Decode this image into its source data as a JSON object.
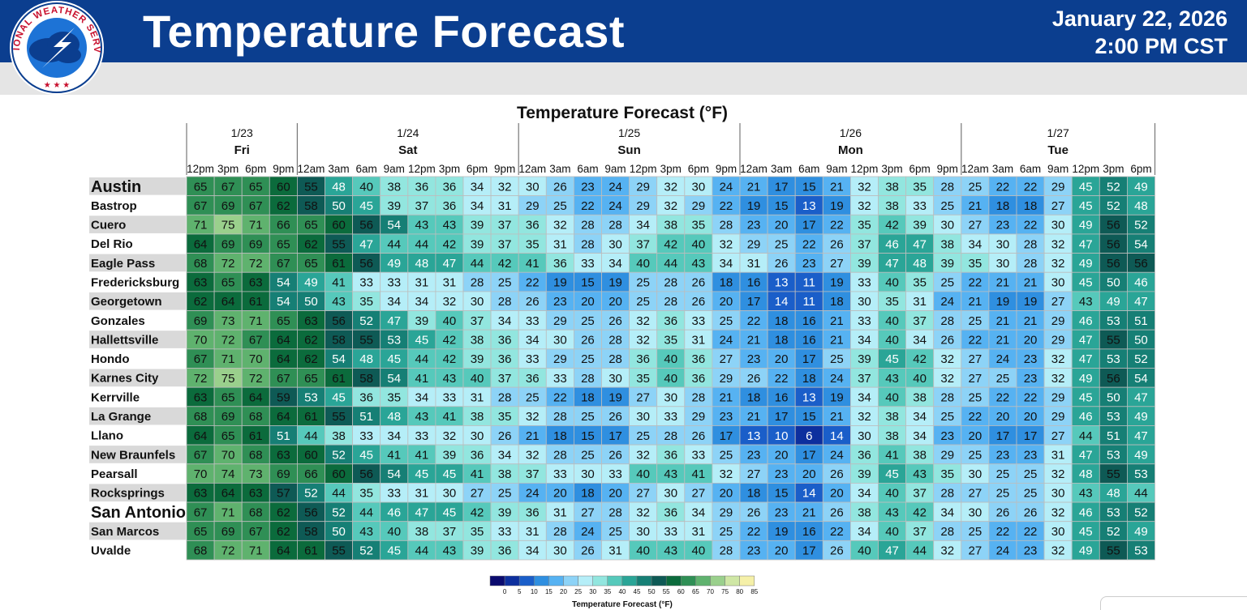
{
  "header": {
    "title": "Temperature Forecast",
    "date": "January 22, 2026",
    "time": "2:00 PM CST",
    "logo_text": "NATIONAL WEATHER SERVICE"
  },
  "chart_data": {
    "type": "heatmap",
    "title": "Temperature Forecast (°F)",
    "days": [
      {
        "date": "1/23",
        "day": "Fri",
        "slots": 4
      },
      {
        "date": "1/24",
        "day": "Sat",
        "slots": 8
      },
      {
        "date": "1/25",
        "day": "Sun",
        "slots": 8
      },
      {
        "date": "1/26",
        "day": "Mon",
        "slots": 8
      },
      {
        "date": "1/27",
        "day": "Tue",
        "slots": 7
      }
    ],
    "times": [
      "12pm",
      "3pm",
      "6pm",
      "9pm",
      "12am",
      "3am",
      "6am",
      "9am",
      "12pm",
      "3pm",
      "6pm",
      "9pm",
      "12am",
      "3am",
      "6am",
      "9am",
      "12pm",
      "3pm",
      "6pm",
      "9pm",
      "12am",
      "3am",
      "6am",
      "9am",
      "12pm",
      "3pm",
      "6pm",
      "9pm",
      "12am",
      "3am",
      "6am",
      "9am",
      "12pm",
      "3pm",
      "6pm"
    ],
    "rows": [
      {
        "city": "Austin",
        "emphasis": true,
        "values": [
          65,
          67,
          65,
          60,
          55,
          48,
          40,
          38,
          36,
          36,
          34,
          32,
          30,
          26,
          23,
          24,
          29,
          32,
          30,
          24,
          21,
          17,
          15,
          21,
          32,
          38,
          35,
          28,
          25,
          22,
          22,
          29,
          45,
          52,
          49
        ]
      },
      {
        "city": "Bastrop",
        "values": [
          67,
          69,
          67,
          62,
          58,
          50,
          45,
          39,
          37,
          36,
          34,
          31,
          29,
          25,
          22,
          24,
          29,
          32,
          29,
          22,
          19,
          15,
          13,
          19,
          32,
          38,
          33,
          25,
          21,
          18,
          18,
          27,
          45,
          52,
          48
        ]
      },
      {
        "city": "Cuero",
        "values": [
          71,
          75,
          71,
          66,
          65,
          60,
          56,
          54,
          43,
          43,
          39,
          37,
          36,
          32,
          28,
          28,
          34,
          38,
          35,
          28,
          23,
          20,
          17,
          22,
          35,
          42,
          39,
          30,
          27,
          23,
          22,
          30,
          49,
          56,
          52
        ]
      },
      {
        "city": "Del Rio",
        "values": [
          64,
          69,
          69,
          65,
          62,
          55,
          47,
          44,
          44,
          42,
          39,
          37,
          35,
          31,
          28,
          30,
          37,
          42,
          40,
          32,
          29,
          25,
          22,
          26,
          37,
          46,
          47,
          38,
          34,
          30,
          28,
          32,
          47,
          56,
          54
        ]
      },
      {
        "city": "Eagle Pass",
        "values": [
          68,
          72,
          72,
          67,
          65,
          61,
          56,
          49,
          48,
          47,
          44,
          42,
          41,
          36,
          33,
          34,
          40,
          44,
          43,
          34,
          31,
          26,
          23,
          27,
          39,
          47,
          48,
          39,
          35,
          30,
          28,
          32,
          49,
          56,
          56
        ]
      },
      {
        "city": "Fredericksburg",
        "values": [
          63,
          65,
          63,
          54,
          49,
          41,
          33,
          33,
          31,
          31,
          28,
          25,
          22,
          19,
          15,
          19,
          25,
          28,
          26,
          18,
          16,
          13,
          11,
          19,
          33,
          40,
          35,
          25,
          22,
          21,
          21,
          30,
          45,
          50,
          46
        ]
      },
      {
        "city": "Georgetown",
        "values": [
          62,
          64,
          61,
          54,
          50,
          43,
          35,
          34,
          34,
          32,
          30,
          28,
          26,
          23,
          20,
          20,
          25,
          28,
          26,
          20,
          17,
          14,
          11,
          18,
          30,
          35,
          31,
          24,
          21,
          19,
          19,
          27,
          43,
          49,
          47
        ]
      },
      {
        "city": "Gonzales",
        "values": [
          69,
          73,
          71,
          65,
          63,
          56,
          52,
          47,
          39,
          40,
          37,
          34,
          33,
          29,
          25,
          26,
          32,
          36,
          33,
          25,
          22,
          18,
          16,
          21,
          33,
          40,
          37,
          28,
          25,
          21,
          21,
          29,
          46,
          53,
          51
        ]
      },
      {
        "city": "Hallettsville",
        "values": [
          70,
          72,
          67,
          64,
          62,
          58,
          55,
          53,
          45,
          42,
          38,
          36,
          34,
          30,
          26,
          28,
          32,
          35,
          31,
          24,
          21,
          18,
          16,
          21,
          34,
          40,
          34,
          26,
          22,
          21,
          20,
          29,
          47,
          55,
          50
        ]
      },
      {
        "city": "Hondo",
        "values": [
          67,
          71,
          70,
          64,
          62,
          54,
          48,
          45,
          44,
          42,
          39,
          36,
          33,
          29,
          25,
          28,
          36,
          40,
          36,
          27,
          23,
          20,
          17,
          25,
          39,
          45,
          42,
          32,
          27,
          24,
          23,
          32,
          47,
          53,
          52
        ]
      },
      {
        "city": "Karnes City",
        "values": [
          72,
          75,
          72,
          67,
          65,
          61,
          58,
          54,
          41,
          43,
          40,
          37,
          36,
          33,
          28,
          30,
          35,
          40,
          36,
          29,
          26,
          22,
          18,
          24,
          37,
          43,
          40,
          32,
          27,
          25,
          23,
          32,
          49,
          56,
          54
        ]
      },
      {
        "city": "Kerrville",
        "values": [
          63,
          65,
          64,
          59,
          53,
          45,
          36,
          35,
          34,
          33,
          31,
          28,
          25,
          22,
          18,
          19,
          27,
          30,
          28,
          21,
          18,
          16,
          13,
          19,
          34,
          40,
          38,
          28,
          25,
          22,
          22,
          29,
          45,
          50,
          47
        ]
      },
      {
        "city": "La Grange",
        "values": [
          68,
          69,
          68,
          64,
          61,
          55,
          51,
          48,
          43,
          41,
          38,
          35,
          32,
          28,
          25,
          26,
          30,
          33,
          29,
          23,
          21,
          17,
          15,
          21,
          32,
          38,
          34,
          25,
          22,
          20,
          20,
          29,
          46,
          53,
          49
        ]
      },
      {
        "city": "Llano",
        "values": [
          64,
          65,
          61,
          51,
          44,
          38,
          33,
          34,
          33,
          32,
          30,
          26,
          21,
          18,
          15,
          17,
          25,
          28,
          26,
          17,
          13,
          10,
          6,
          14,
          30,
          38,
          34,
          23,
          20,
          17,
          17,
          27,
          44,
          51,
          47
        ]
      },
      {
        "city": "New Braunfels",
        "values": [
          67,
          70,
          68,
          63,
          60,
          52,
          45,
          41,
          41,
          39,
          36,
          34,
          32,
          28,
          25,
          26,
          32,
          36,
          33,
          25,
          23,
          20,
          17,
          24,
          36,
          41,
          38,
          29,
          25,
          23,
          23,
          31,
          47,
          53,
          49
        ]
      },
      {
        "city": "Pearsall",
        "values": [
          70,
          74,
          73,
          69,
          66,
          60,
          56,
          54,
          45,
          45,
          41,
          38,
          37,
          33,
          30,
          33,
          40,
          43,
          41,
          32,
          27,
          23,
          20,
          26,
          39,
          45,
          43,
          35,
          30,
          25,
          25,
          32,
          48,
          55,
          53
        ]
      },
      {
        "city": "Rocksprings",
        "values": [
          63,
          64,
          63,
          57,
          52,
          44,
          35,
          33,
          31,
          30,
          27,
          25,
          24,
          20,
          18,
          20,
          27,
          30,
          27,
          20,
          18,
          15,
          14,
          20,
          34,
          40,
          37,
          28,
          27,
          25,
          25,
          30,
          43,
          48,
          44
        ]
      },
      {
        "city": "San Antonio",
        "emphasis": true,
        "values": [
          67,
          71,
          68,
          62,
          56,
          52,
          44,
          46,
          47,
          45,
          42,
          39,
          36,
          31,
          27,
          28,
          32,
          36,
          34,
          29,
          26,
          23,
          21,
          26,
          38,
          43,
          42,
          34,
          30,
          26,
          26,
          32,
          46,
          53,
          52
        ]
      },
      {
        "city": "San Marcos",
        "values": [
          65,
          69,
          67,
          62,
          58,
          50,
          43,
          40,
          38,
          37,
          35,
          33,
          31,
          28,
          24,
          25,
          30,
          33,
          31,
          25,
          22,
          19,
          16,
          22,
          34,
          40,
          37,
          28,
          25,
          22,
          22,
          30,
          45,
          52,
          49
        ]
      },
      {
        "city": "Uvalde",
        "values": [
          68,
          72,
          71,
          64,
          61,
          55,
          52,
          45,
          44,
          43,
          39,
          36,
          34,
          30,
          26,
          31,
          40,
          43,
          40,
          28,
          23,
          20,
          17,
          26,
          40,
          47,
          44,
          32,
          27,
          24,
          23,
          32,
          49,
          55,
          53
        ]
      }
    ],
    "legend": {
      "title": "Temperature Forecast (°F)",
      "ticks": [
        0,
        5,
        10,
        15,
        20,
        25,
        30,
        35,
        40,
        45,
        50,
        55,
        60,
        65,
        70,
        75,
        80,
        85
      ],
      "colors": [
        "#0a0a6e",
        "#0d2f9e",
        "#1a5ec9",
        "#2f8fe0",
        "#56b2f2",
        "#8dd3f7",
        "#b5eef8",
        "#92e6df",
        "#56c9bb",
        "#2aa597",
        "#167f75",
        "#0e5a55",
        "#0b6b3c",
        "#2f8f55",
        "#5fb26e",
        "#9ad08c",
        "#cfe7a5",
        "#f5f0a8"
      ]
    }
  }
}
